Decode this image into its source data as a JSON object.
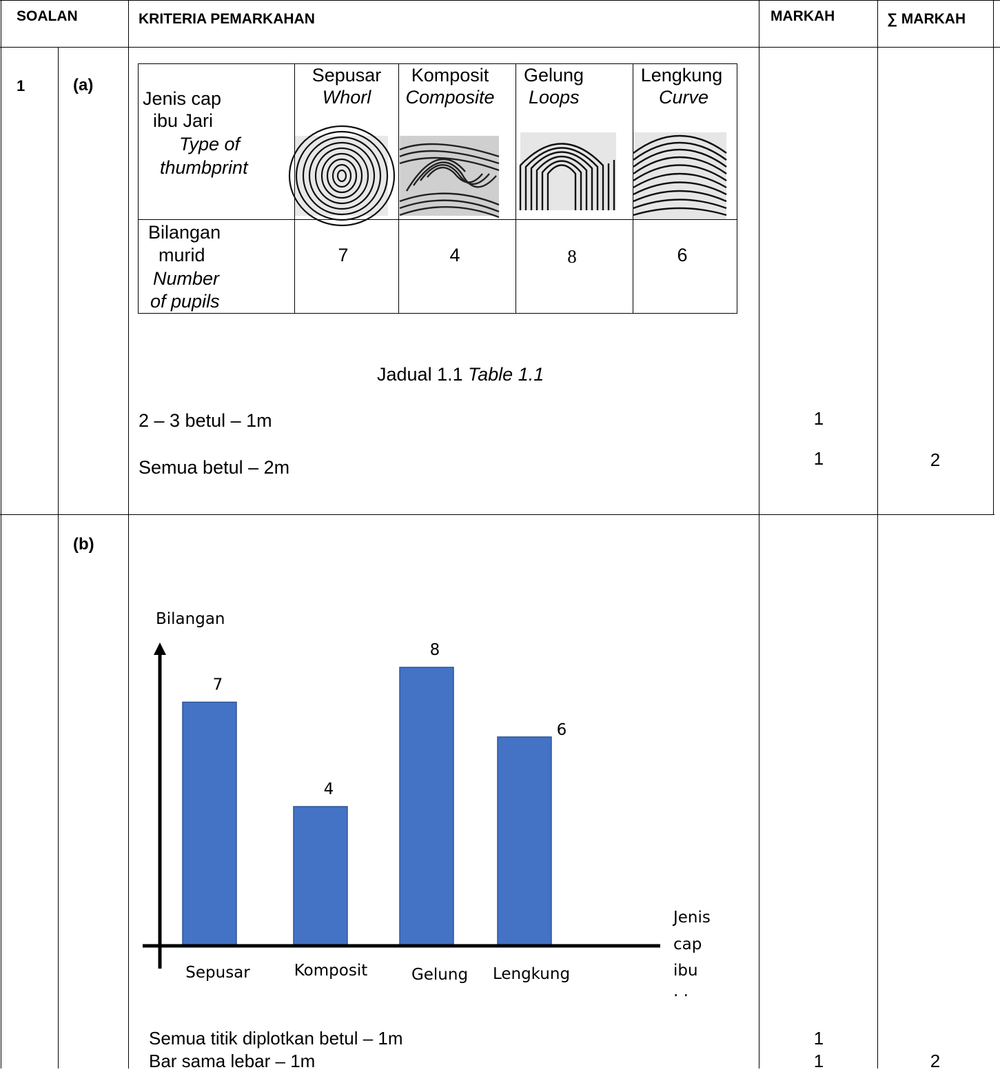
{
  "header": {
    "soalan": "SOALAN",
    "kriteria": "KRITERIA PEMARKAHAN",
    "markah": "MARKAH",
    "total_markah": "∑ MARKAH"
  },
  "q1": {
    "number": "1",
    "part_a": {
      "label": "(a)",
      "table": {
        "row1_label_malay": [
          "Jenis cap",
          "ibu Jari"
        ],
        "row1_label_en": [
          "Type of",
          "thumbprint"
        ],
        "columns": [
          {
            "malay": "Sepusar",
            "en": "Whorl",
            "icon": "whorl-fingerprint-image"
          },
          {
            "malay": "Komposit",
            "en": "Composite",
            "icon": "composite-fingerprint-image"
          },
          {
            "malay": "Gelung",
            "en": "Loops",
            "icon": "loop-fingerprint-image"
          },
          {
            "malay": "Lengkung",
            "en": "Curve",
            "icon": "arch-fingerprint-image"
          }
        ],
        "row2_label_malay": [
          "Bilangan",
          "murid"
        ],
        "row2_label_en": [
          "Number",
          "of pupils"
        ],
        "values": [
          "7",
          "4",
          "8",
          "6"
        ]
      },
      "caption_malay": "Jadual 1.1",
      "caption_en": "Table 1.1",
      "criteria": [
        "2 – 3 betul – 1m",
        "Semua betul – 2m"
      ],
      "marks": [
        "1",
        "1"
      ],
      "total": "2"
    },
    "part_b": {
      "label": "(b)",
      "criteria": [
        "Semua titik diplotkan betul – 1m",
        "Bar sama lebar – 1m"
      ],
      "marks": [
        "1",
        "1"
      ],
      "total": "2"
    }
  },
  "chart_data": {
    "type": "bar",
    "categories": [
      "Sepusar",
      "Komposit",
      "Gelung",
      "Lengkung"
    ],
    "values": [
      7,
      4,
      8,
      6
    ],
    "data_labels": [
      "7",
      "4",
      "8",
      "6"
    ],
    "xlabel": [
      "Jenis",
      "cap",
      "ibu",
      ". ."
    ],
    "ylabel": "Bilangan",
    "ylim": [
      0,
      8
    ],
    "grid": false,
    "legend": "none",
    "bar_color": "#4472c4"
  }
}
